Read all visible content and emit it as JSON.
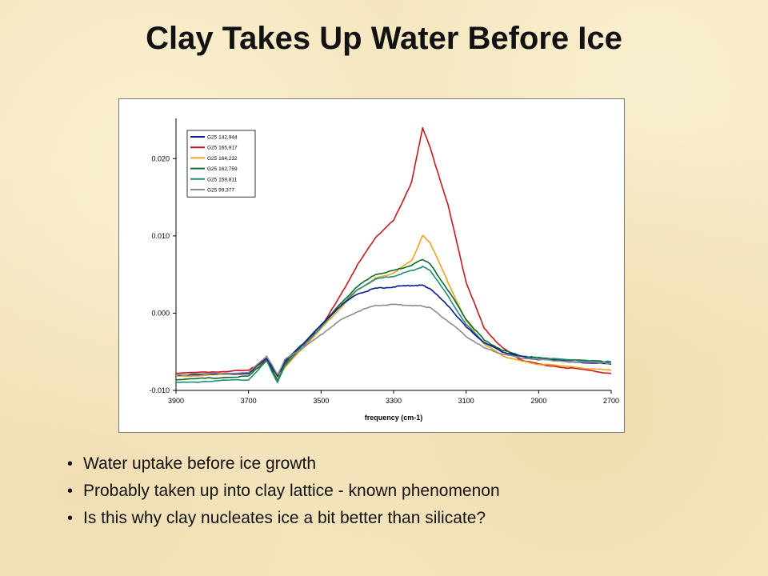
{
  "slide": {
    "title": "Clay Takes Up Water Before Ice",
    "bullet_glyph": "•",
    "bullets": [
      "Water uptake before ice growth",
      "Probably taken up into clay lattice - known phenomenon",
      "Is this why clay nucleates ice a bit better than silicate?"
    ]
  },
  "chart_data": {
    "type": "line",
    "title": "",
    "xlabel": "frequency (cm-1)",
    "ylabel": "",
    "xlim": [
      3900,
      2700
    ],
    "ylim": [
      -0.01,
      0.025
    ],
    "x_ticks": [
      3900,
      3700,
      3500,
      3300,
      3100,
      2900,
      2700
    ],
    "x_tick_labels": [
      "3900",
      "3700",
      "3500",
      "3300",
      "3100",
      "2900",
      "2700"
    ],
    "y_ticks": [
      0.02,
      0.01,
      0.0,
      -0.01
    ],
    "y_tick_labels": [
      "0.020",
      "0.010",
      "0.000",
      "-0.010"
    ],
    "grid": false,
    "legend_position": "top-left",
    "x": [
      3900,
      3800,
      3700,
      3650,
      3620,
      3600,
      3550,
      3500,
      3450,
      3400,
      3350,
      3300,
      3250,
      3220,
      3200,
      3150,
      3100,
      3050,
      3000,
      2950,
      2900,
      2800,
      2700
    ],
    "series": [
      {
        "name": "G25 142,944",
        "color": "#0b1a8f",
        "values": [
          -0.008,
          -0.0079,
          -0.0078,
          -0.0058,
          -0.0082,
          -0.0062,
          -0.004,
          -0.0016,
          0.0008,
          0.0025,
          0.0032,
          0.0034,
          0.0036,
          0.0036,
          0.0032,
          0.001,
          -0.0018,
          -0.0038,
          -0.005,
          -0.0056,
          -0.006,
          -0.0063,
          -0.0066
        ]
      },
      {
        "name": "G25 165,917",
        "color": "#c9161e",
        "values": [
          -0.0078,
          -0.0076,
          -0.0074,
          -0.006,
          -0.008,
          -0.0066,
          -0.0045,
          -0.0018,
          0.002,
          0.0062,
          0.0098,
          0.012,
          0.017,
          0.024,
          0.0215,
          0.014,
          0.004,
          -0.002,
          -0.0045,
          -0.006,
          -0.0066,
          -0.0072,
          -0.0078
        ]
      },
      {
        "name": "G25 164,232",
        "color": "#f0a11e",
        "values": [
          -0.0082,
          -0.008,
          -0.0078,
          -0.0062,
          -0.0085,
          -0.007,
          -0.0045,
          -0.002,
          0.0005,
          0.003,
          0.0045,
          0.0052,
          0.0068,
          0.01,
          0.0092,
          0.004,
          -0.001,
          -0.004,
          -0.0055,
          -0.0062,
          -0.0066,
          -0.007,
          -0.0074
        ]
      },
      {
        "name": "G25 162,759",
        "color": "#0c6a2e",
        "values": [
          -0.0086,
          -0.0084,
          -0.0082,
          -0.006,
          -0.0088,
          -0.0065,
          -0.004,
          -0.0015,
          0.001,
          0.0035,
          0.005,
          0.0055,
          0.0062,
          0.007,
          0.0064,
          0.003,
          -0.0008,
          -0.0035,
          -0.0048,
          -0.0055,
          -0.0058,
          -0.0061,
          -0.0063
        ]
      },
      {
        "name": "G25 159,811",
        "color": "#1e8b7c",
        "values": [
          -0.009,
          -0.0088,
          -0.0086,
          -0.0062,
          -0.009,
          -0.0068,
          -0.0042,
          -0.0018,
          0.0008,
          0.003,
          0.0044,
          0.0048,
          0.0055,
          0.006,
          0.0056,
          0.0022,
          -0.0015,
          -0.0038,
          -0.005,
          -0.0056,
          -0.0058,
          -0.0061,
          -0.0063
        ]
      },
      {
        "name": "G25 99,377",
        "color": "#8c8c8c",
        "values": [
          -0.008,
          -0.0078,
          -0.0077,
          -0.0055,
          -0.008,
          -0.006,
          -0.0045,
          -0.0028,
          -0.001,
          0.0002,
          0.001,
          0.0011,
          0.001,
          0.0009,
          0.0007,
          -0.001,
          -0.003,
          -0.0045,
          -0.0053,
          -0.0058,
          -0.006,
          -0.0063,
          -0.0065
        ]
      }
    ]
  }
}
